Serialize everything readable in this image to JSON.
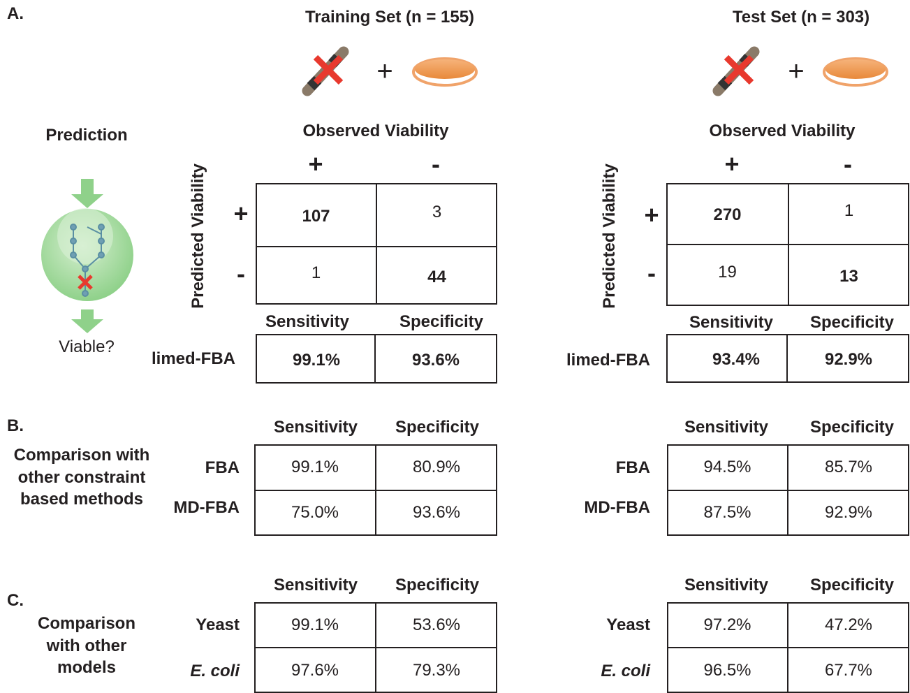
{
  "panel_a": {
    "label": "A.",
    "prediction": {
      "title": "Prediction",
      "caption": "Viable?"
    },
    "sets": [
      {
        "title": "Training Set (n = 155)",
        "plus": "+",
        "observed_header": "Observed Viability",
        "observed_columns": [
          "+",
          "-"
        ],
        "predicted_header": "Predicted Viability",
        "predicted_rows": [
          "+",
          "-"
        ],
        "matrix": [
          [
            107,
            3
          ],
          [
            1,
            44
          ]
        ],
        "metric_headers": [
          "Sensitivity",
          "Specificity"
        ],
        "method": "limed-FBA",
        "metrics": [
          "99.1%",
          "93.6%"
        ]
      },
      {
        "title": "Test Set (n = 303)",
        "plus": "+",
        "observed_header": "Observed Viability",
        "observed_columns": [
          "+",
          "-"
        ],
        "predicted_header": "Predicted Viability",
        "predicted_rows": [
          "+",
          "-"
        ],
        "matrix": [
          [
            270,
            1
          ],
          [
            19,
            13
          ]
        ],
        "metric_headers": [
          "Sensitivity",
          "Specificity"
        ],
        "method": "limed-FBA",
        "metrics": [
          "93.4%",
          "92.9%"
        ]
      }
    ]
  },
  "panel_b": {
    "label": "B.",
    "title": "Comparison with other constraint based methods",
    "tables": [
      {
        "headers": [
          "Sensitivity",
          "Specificity"
        ],
        "rows": [
          {
            "name": "FBA",
            "values": [
              "99.1%",
              "80.9%"
            ]
          },
          {
            "name": "MD-FBA",
            "values": [
              "75.0%",
              "93.6%"
            ]
          }
        ]
      },
      {
        "headers": [
          "Sensitivity",
          "Specificity"
        ],
        "rows": [
          {
            "name": "FBA",
            "values": [
              "94.5%",
              "85.7%"
            ]
          },
          {
            "name": "MD-FBA",
            "values": [
              "87.5%",
              "92.9%"
            ]
          }
        ]
      }
    ]
  },
  "panel_c": {
    "label": "C.",
    "title": "Comparison with other models",
    "tables": [
      {
        "headers": [
          "Sensitivity",
          "Specificity"
        ],
        "rows": [
          {
            "name": "Yeast",
            "values": [
              "99.1%",
              "53.6%"
            ]
          },
          {
            "name": "E. coli",
            "values": [
              "97.6%",
              "79.3%"
            ]
          }
        ]
      },
      {
        "headers": [
          "Sensitivity",
          "Specificity"
        ],
        "rows": [
          {
            "name": "Yeast",
            "values": [
              "97.2%",
              "47.2%"
            ]
          },
          {
            "name": "E. coli",
            "values": [
              "96.5%",
              "67.7%"
            ]
          }
        ]
      }
    ]
  }
}
